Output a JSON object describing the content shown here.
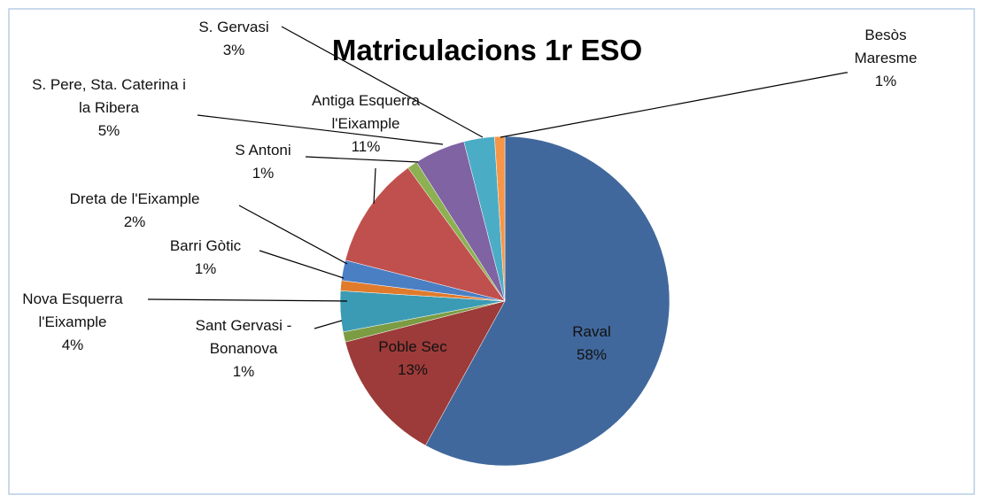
{
  "chart_data": {
    "type": "pie",
    "title": "Matriculacions 1r ESO",
    "categories": [
      "Raval",
      "Poble Sec",
      "Sant Gervasi - Bonanova",
      "Nova Esquerra l'Eixample",
      "Barri Gòtic",
      "Dreta de l'Eixample",
      "Antiga Esquerra l'Eixample",
      "S Antoni",
      "S. Pere, Sta. Caterina i la Ribera",
      "S. Gervasi",
      "Besòs Maresme"
    ],
    "values": [
      58,
      13,
      1,
      4,
      1,
      2,
      11,
      1,
      5,
      3,
      1
    ],
    "value_labels": [
      "58%",
      "13%",
      "1%",
      "4%",
      "1%",
      "2%",
      "11%",
      "1%",
      "5%",
      "3%",
      "1%"
    ],
    "colors": [
      "#41689c",
      "#9c3b39",
      "#7c9c44",
      "#3b9bb4",
      "#e07b2c",
      "#4a7fc4",
      "#c0504d",
      "#8db152",
      "#7f63a2",
      "#4bacc6",
      "#f79646"
    ]
  }
}
